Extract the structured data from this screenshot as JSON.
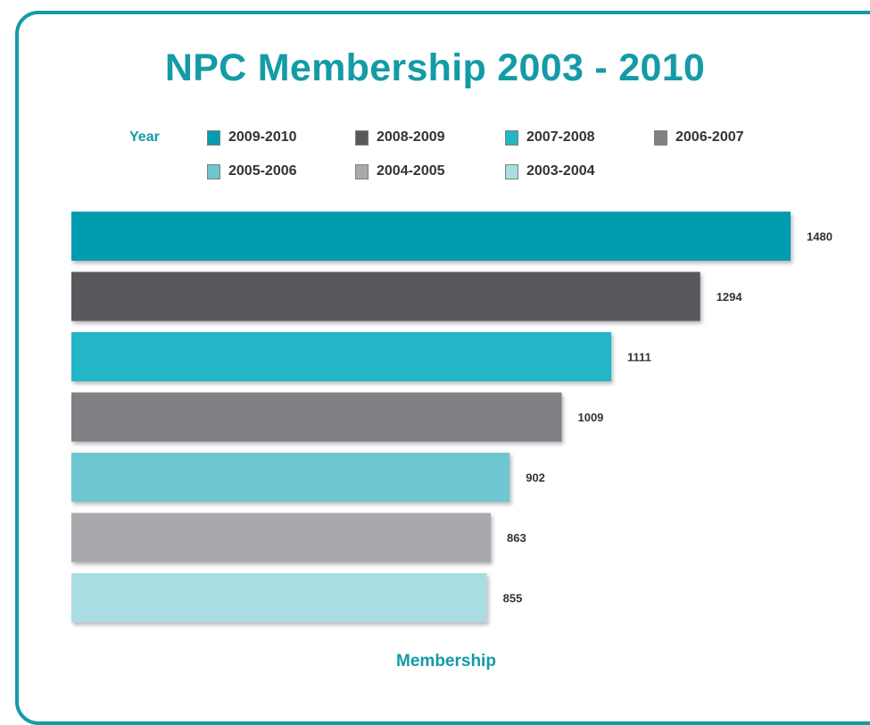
{
  "chart_data": {
    "type": "bar",
    "orientation": "horizontal",
    "title": "NPC Membership 2003 - 2010",
    "legend_title": "Year",
    "xlabel": "Membership",
    "ylabel": "",
    "grid": false,
    "legend_position": "top",
    "categories": [
      "2009-2010",
      "2008-2009",
      "2007-2008",
      "2006-2007",
      "2005-2006",
      "2004-2005",
      "2003-2004"
    ],
    "values": [
      1480,
      1294,
      1111,
      1009,
      902,
      863,
      855
    ],
    "value_labels": [
      "1480",
      "1294",
      "1111",
      "1009",
      "902",
      "863",
      "855"
    ],
    "colors": [
      "#049caf",
      "#58595b",
      "#22b6c6",
      "#808184",
      "#70c6d0",
      "#a7a9ac",
      "#a9dce3"
    ]
  },
  "theme": {
    "accent": "#139ba7",
    "frame_border": "#139ba7",
    "label_color": "#333333"
  }
}
